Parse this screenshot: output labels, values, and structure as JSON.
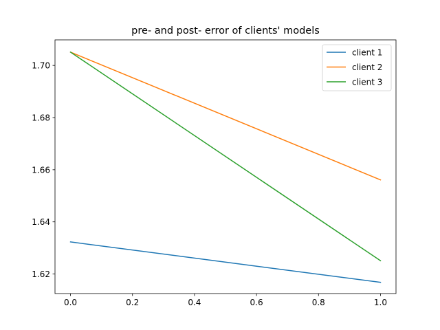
{
  "chart_data": {
    "type": "line",
    "title": "pre- and post- error of clients' models",
    "xlabel": "",
    "ylabel": "",
    "x": [
      0.0,
      1.0
    ],
    "xlim": [
      -0.05,
      1.05
    ],
    "ylim": [
      1.6125,
      1.7098
    ],
    "xticks": [
      0.0,
      0.2,
      0.4,
      0.6,
      0.8,
      1.0
    ],
    "xtick_labels": [
      "0.0",
      "0.2",
      "0.4",
      "0.6",
      "0.8",
      "1.0"
    ],
    "yticks": [
      1.62,
      1.64,
      1.66,
      1.68,
      1.7
    ],
    "ytick_labels": [
      "1.62",
      "1.64",
      "1.66",
      "1.68",
      "1.70"
    ],
    "grid": false,
    "legend_position": "top-right",
    "series": [
      {
        "name": "client 1",
        "color": "#1f77b4",
        "values": [
          1.6323,
          1.6168
        ]
      },
      {
        "name": "client 2",
        "color": "#ff7f0e",
        "values": [
          1.7051,
          1.6561
        ]
      },
      {
        "name": "client 3",
        "color": "#2ca02c",
        "values": [
          1.7051,
          1.6251
        ]
      }
    ]
  }
}
